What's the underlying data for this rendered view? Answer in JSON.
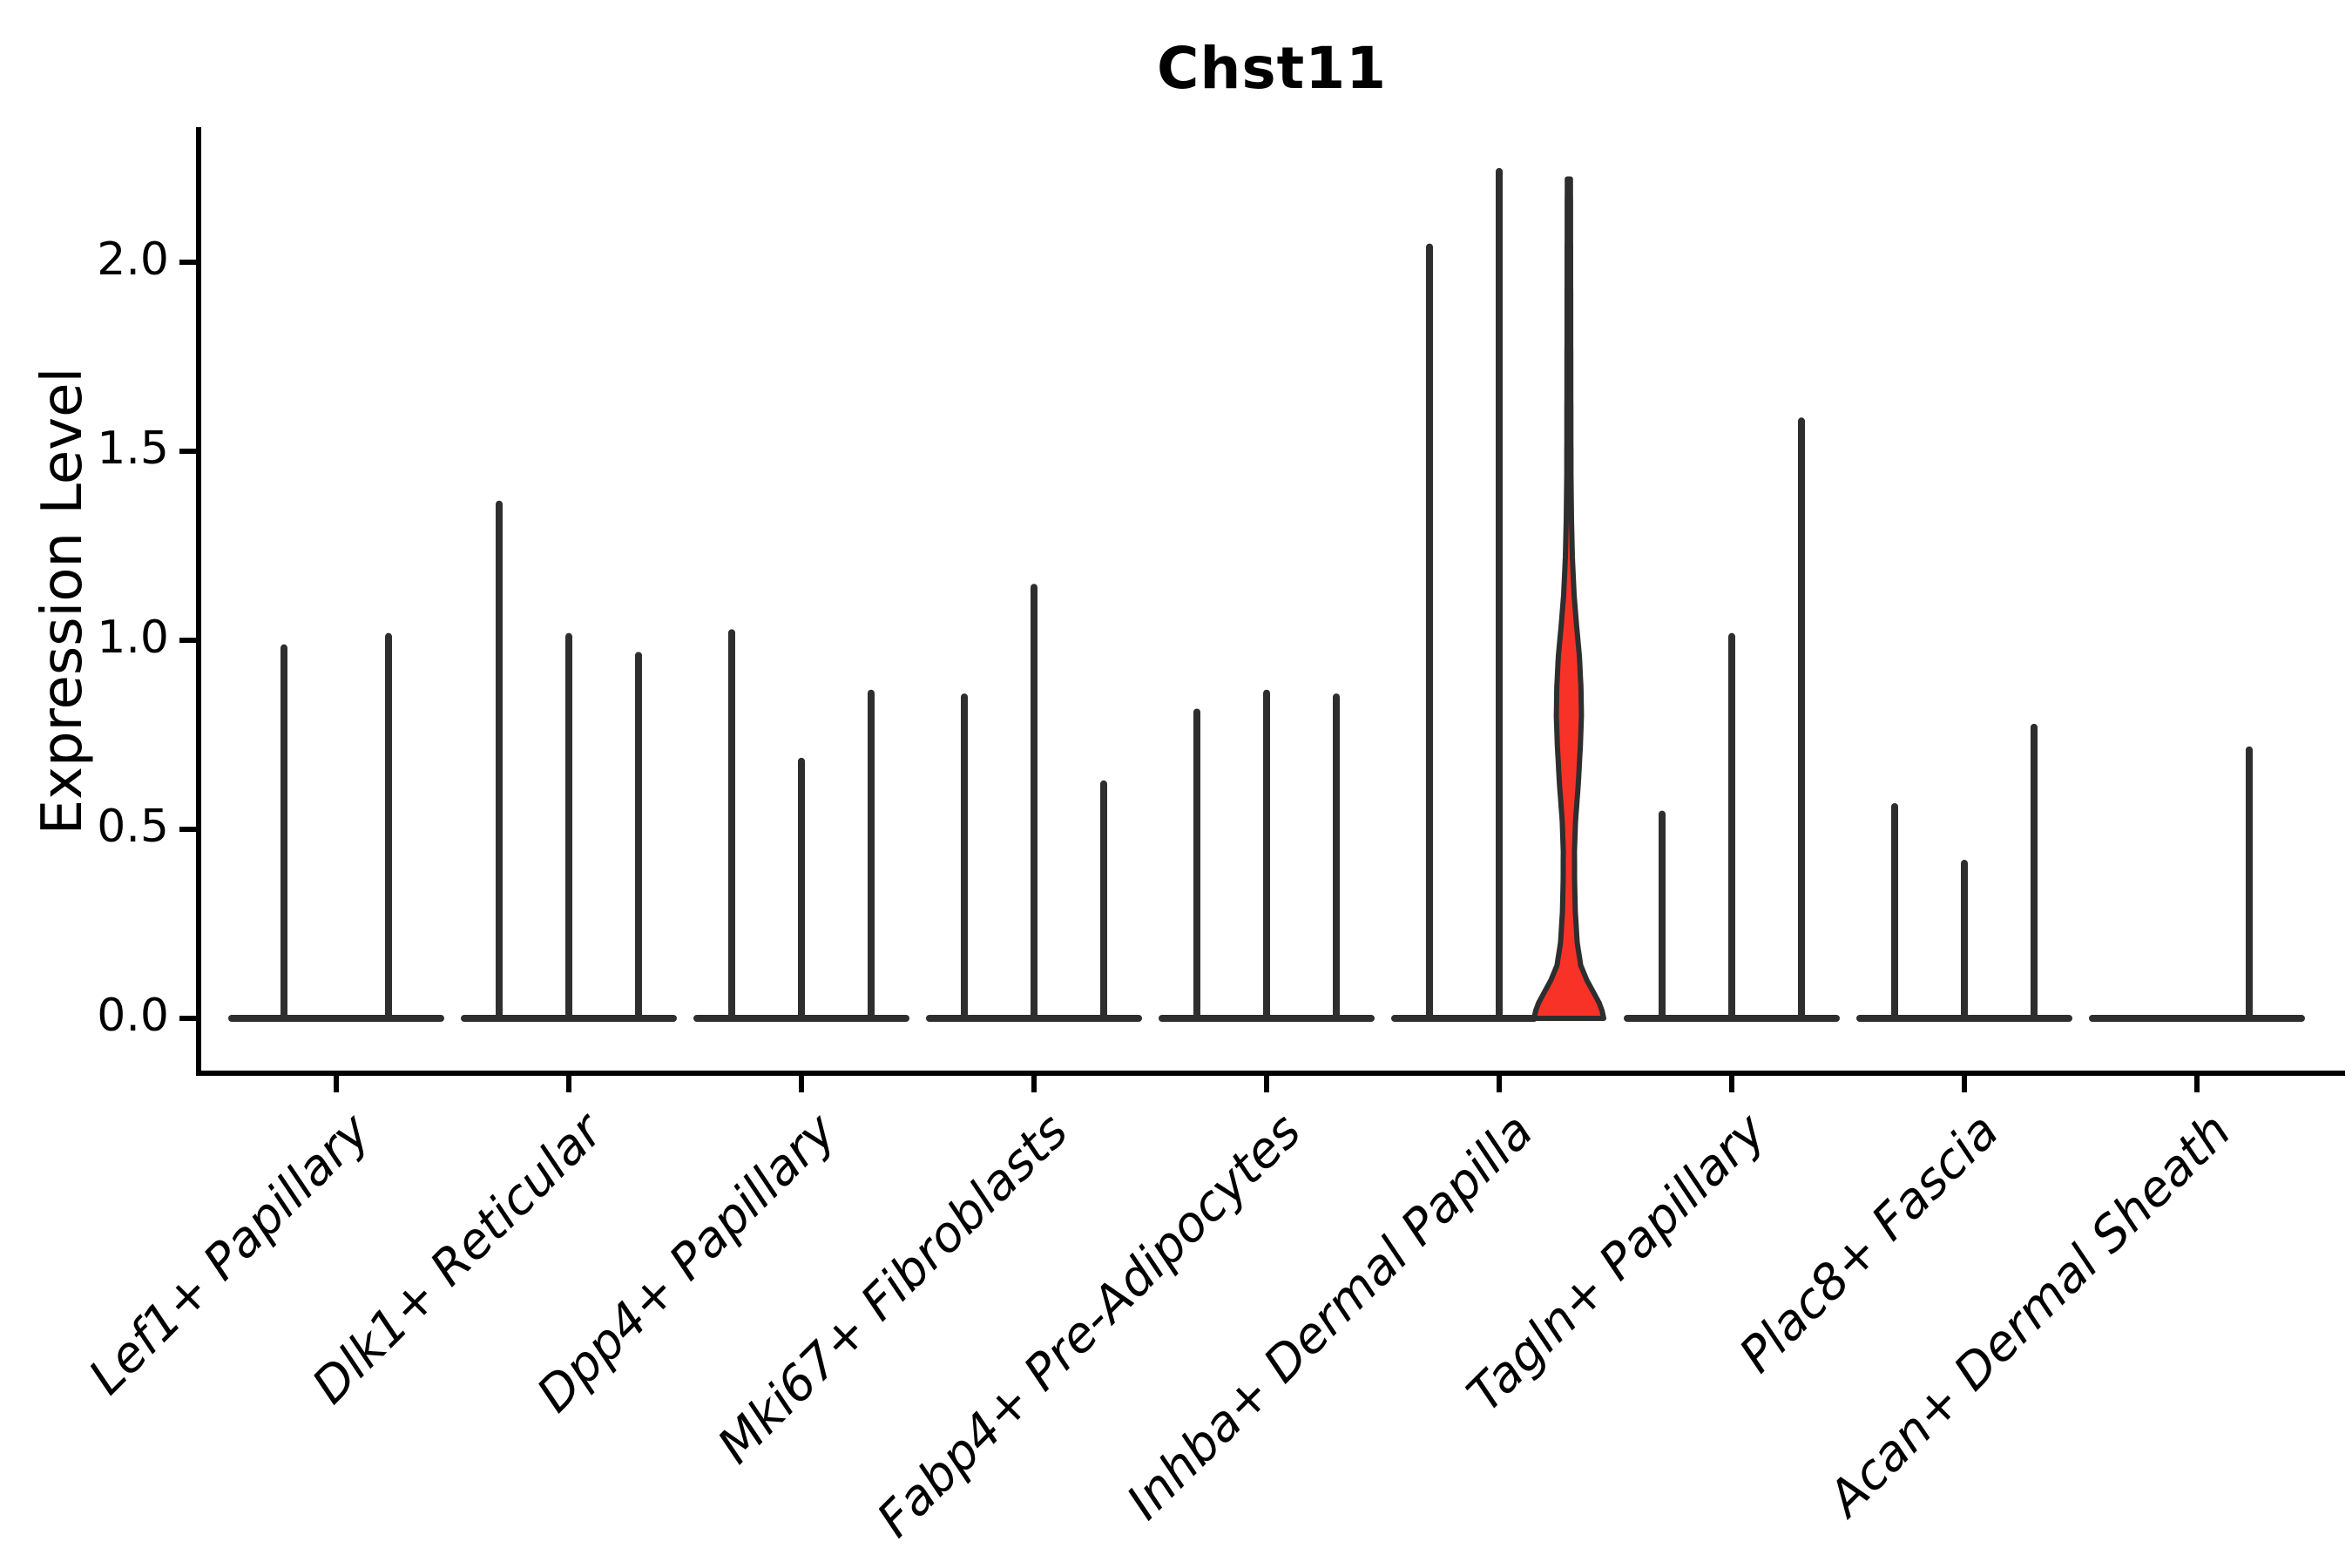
{
  "title": "Chst11",
  "y_axis": {
    "label": "Expression Level",
    "ticks": [
      0.0,
      0.5,
      1.0,
      1.5,
      2.0
    ]
  },
  "chart_data": {
    "type": "violin",
    "title": "Chst11",
    "xlabel": "",
    "ylabel": "Expression Level",
    "ylim": [
      -0.15,
      2.35
    ],
    "yticks": [
      0.0,
      0.5,
      1.0,
      1.5,
      2.0
    ],
    "grid": false,
    "legend": "none",
    "categories": [
      "Lef1+ Papillary",
      "Dlk1+ Reticular",
      "Dpp4+ Papillary",
      "Mki67+ Fibroblasts",
      "Fabp4+ Pre-Adipocytes",
      "Inhba+ Dermal Papilla",
      "Tagln+ Papillary",
      "Plac8+ Fascia",
      "Acan+ Dermal Sheath"
    ],
    "description": "Violin plot of Chst11 expression; most violins are collapsed to a flat baseline at 0 with a thin vertical spike reaching the maximum expression value. One violin (third of Inhba+ Dermal Papilla) is filled red and shows a visible density bulge.",
    "groups": [
      {
        "category": "Lef1+ Papillary",
        "violins": [
          {
            "max": 0.98
          },
          {
            "max": 1.01
          }
        ]
      },
      {
        "category": "Dlk1+ Reticular",
        "violins": [
          {
            "max": 1.36
          },
          {
            "max": 1.01
          },
          {
            "max": 0.96
          }
        ]
      },
      {
        "category": "Dpp4+ Papillary",
        "violins": [
          {
            "max": 1.02
          },
          {
            "max": 0.68
          },
          {
            "max": 0.86
          }
        ]
      },
      {
        "category": "Mki67+ Fibroblasts",
        "violins": [
          {
            "max": 0.85
          },
          {
            "max": 1.14
          },
          {
            "max": 0.62
          }
        ]
      },
      {
        "category": "Fabp4+ Pre-Adipocytes",
        "violins": [
          {
            "max": 0.81
          },
          {
            "max": 0.86
          },
          {
            "max": 0.85
          }
        ]
      },
      {
        "category": "Inhba+ Dermal Papilla",
        "violins": [
          {
            "max": 2.04
          },
          {
            "max": 2.24
          },
          {
            "max": 2.22,
            "highlight": true
          }
        ]
      },
      {
        "category": "Tagln+ Papillary",
        "violins": [
          {
            "max": 0.54
          },
          {
            "max": 1.01
          },
          {
            "max": 1.58
          }
        ]
      },
      {
        "category": "Plac8+ Fascia",
        "violins": [
          {
            "max": 0.56
          },
          {
            "max": 0.41
          },
          {
            "max": 0.77
          }
        ]
      },
      {
        "category": "Acan+ Dermal Sheath",
        "violins": [
          {
            "max": 0.0
          },
          {
            "max": 0.71
          }
        ]
      }
    ],
    "highlight_profile": [
      [
        0.0,
        1.0
      ],
      [
        0.03,
        0.93
      ],
      [
        0.07,
        0.7
      ],
      [
        0.1,
        0.52
      ],
      [
        0.14,
        0.34
      ],
      [
        0.2,
        0.24
      ],
      [
        0.28,
        0.185
      ],
      [
        0.36,
        0.165
      ],
      [
        0.44,
        0.16
      ],
      [
        0.52,
        0.19
      ],
      [
        0.62,
        0.27
      ],
      [
        0.72,
        0.33
      ],
      [
        0.8,
        0.36
      ],
      [
        0.88,
        0.345
      ],
      [
        0.96,
        0.3
      ],
      [
        1.04,
        0.22
      ],
      [
        1.12,
        0.15
      ],
      [
        1.22,
        0.1
      ],
      [
        1.32,
        0.075
      ],
      [
        1.45,
        0.06
      ],
      [
        1.7,
        0.055
      ],
      [
        2.0,
        0.05
      ],
      [
        2.22,
        0.045
      ]
    ],
    "colors": {
      "violin_line": "#2e2e2e",
      "highlight_fill": "#f93228",
      "axis": "#000000",
      "background": "#ffffff"
    }
  }
}
